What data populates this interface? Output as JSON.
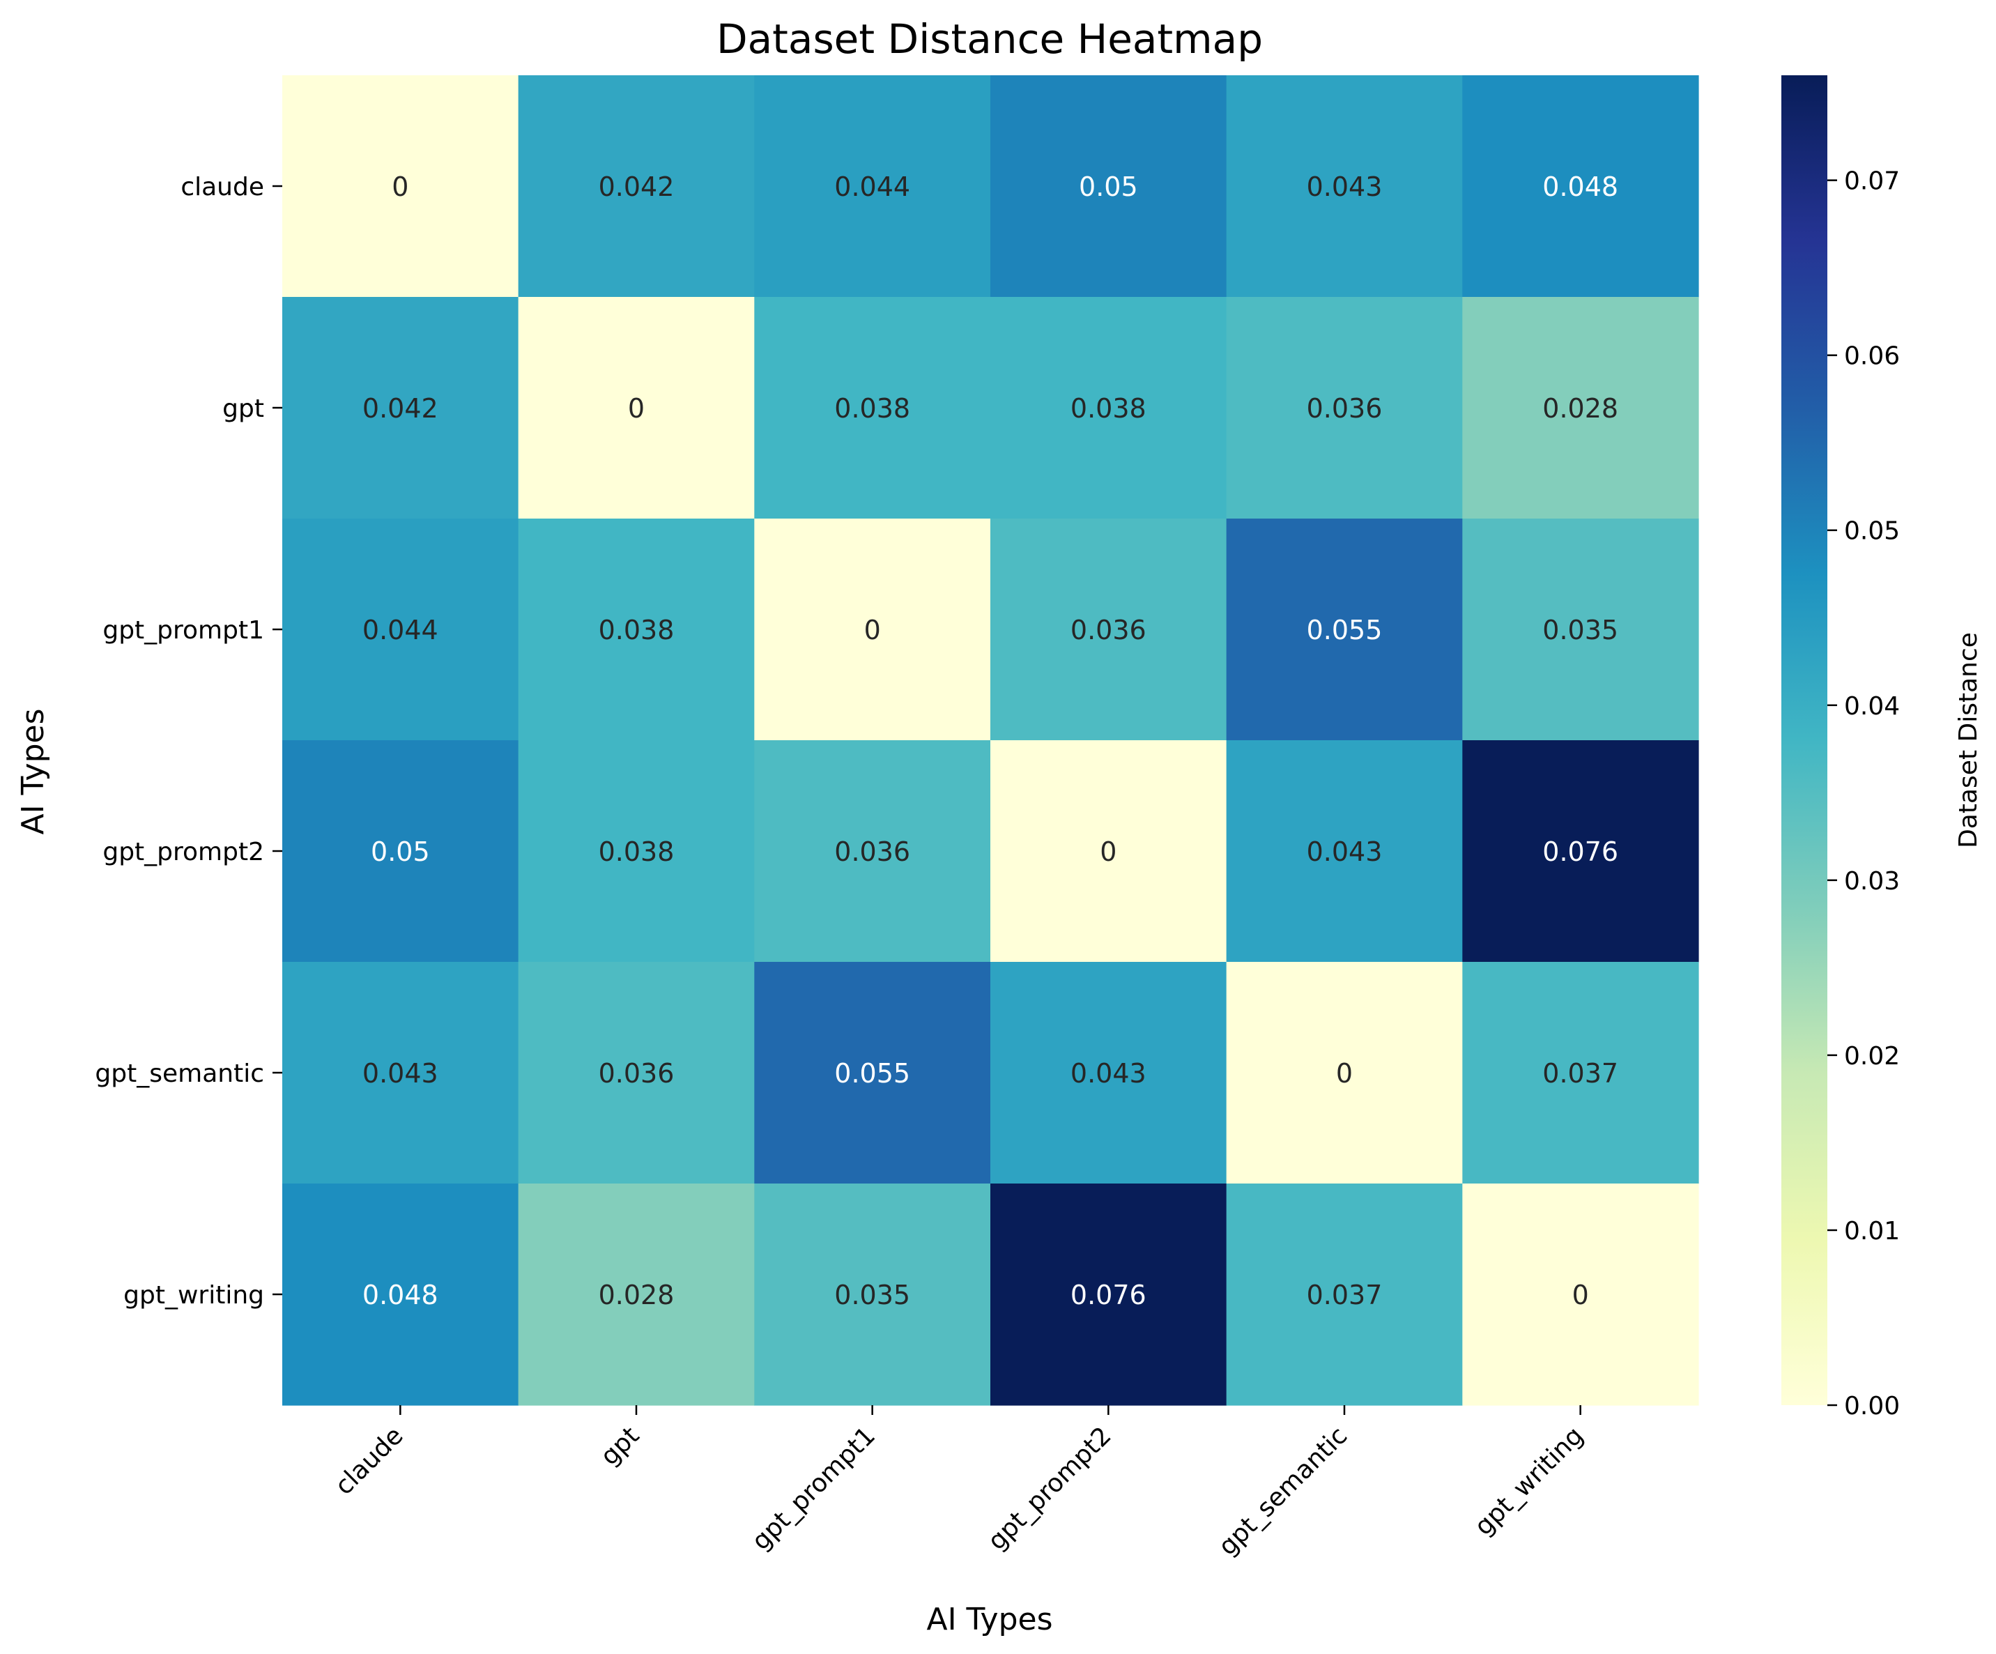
{
  "chart_data": {
    "type": "heatmap",
    "title": "Dataset Distance Heatmap",
    "xlabel": "AI Types",
    "ylabel": "AI Types",
    "x_categories": [
      "claude",
      "gpt",
      "gpt_prompt1",
      "gpt_prompt2",
      "gpt_semantic",
      "gpt_writing"
    ],
    "y_categories": [
      "claude",
      "gpt",
      "gpt_prompt1",
      "gpt_prompt2",
      "gpt_semantic",
      "gpt_writing"
    ],
    "values": [
      [
        0,
        0.042,
        0.044,
        0.05,
        0.043,
        0.048
      ],
      [
        0.042,
        0,
        0.038,
        0.038,
        0.036,
        0.028
      ],
      [
        0.044,
        0.038,
        0,
        0.036,
        0.055,
        0.035
      ],
      [
        0.05,
        0.038,
        0.036,
        0,
        0.043,
        0.076
      ],
      [
        0.043,
        0.036,
        0.055,
        0.043,
        0,
        0.037
      ],
      [
        0.048,
        0.028,
        0.035,
        0.076,
        0.037,
        0
      ]
    ],
    "labels": [
      [
        "0",
        "0.042",
        "0.044",
        "0.05",
        "0.043",
        "0.048"
      ],
      [
        "0.042",
        "0",
        "0.038",
        "0.038",
        "0.036",
        "0.028"
      ],
      [
        "0.044",
        "0.038",
        "0",
        "0.036",
        "0.055",
        "0.035"
      ],
      [
        "0.05",
        "0.038",
        "0.036",
        "0",
        "0.043",
        "0.076"
      ],
      [
        "0.043",
        "0.036",
        "0.055",
        "0.043",
        "0",
        "0.037"
      ],
      [
        "0.048",
        "0.028",
        "0.035",
        "0.076",
        "0.037",
        "0"
      ]
    ],
    "colorbar": {
      "label": "Dataset Distance",
      "range": [
        0,
        0.076
      ],
      "ticks": [
        0,
        0.01,
        0.02,
        0.03,
        0.04,
        0.05,
        0.06,
        0.07
      ],
      "tick_labels": [
        "0.00",
        "0.01",
        "0.02",
        "0.03",
        "0.04",
        "0.05",
        "0.06",
        "0.07"
      ],
      "colormap": "YlGnBu",
      "colors": [
        "#ffffd9",
        "#edf8b1",
        "#c7e9b4",
        "#7fcdbb",
        "#41b6c4",
        "#1d91c0",
        "#225ea8",
        "#253494",
        "#081d58"
      ]
    },
    "grid": false
  }
}
